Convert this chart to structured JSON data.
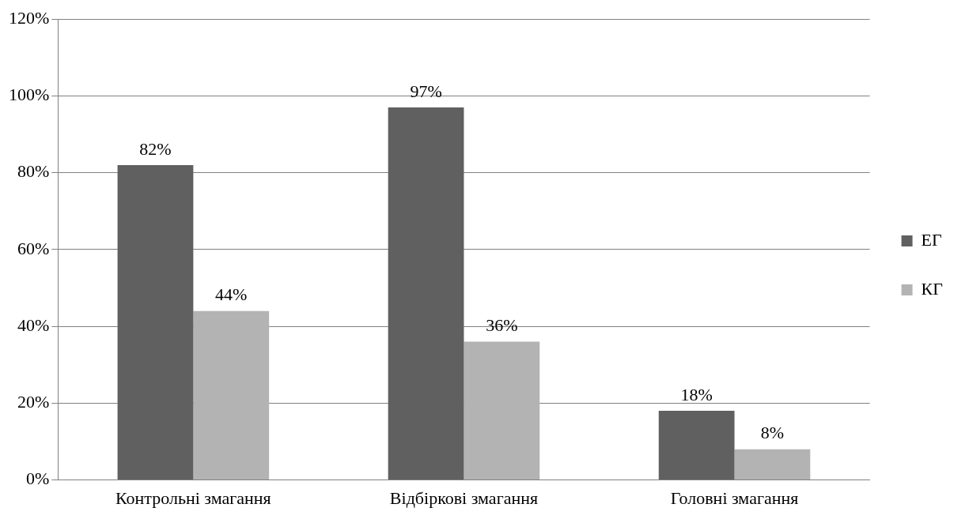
{
  "chart_data": {
    "type": "bar",
    "categories": [
      "Контрольні змагання",
      "Відбіркові змагання",
      "Головні змагання"
    ],
    "series": [
      {
        "name": "ЕГ",
        "color": "#606060",
        "values": [
          82,
          97,
          18
        ],
        "value_labels": [
          "82%",
          "97%",
          "18%"
        ]
      },
      {
        "name": "КГ",
        "color": "#b3b3b3",
        "values": [
          44,
          36,
          8
        ],
        "value_labels": [
          "44%",
          "36%",
          "8%"
        ]
      }
    ],
    "ylim": [
      0,
      120
    ],
    "yticks": [
      {
        "value": 0,
        "label": "0%"
      },
      {
        "value": 20,
        "label": "20%"
      },
      {
        "value": 40,
        "label": "40%"
      },
      {
        "value": 60,
        "label": "60%"
      },
      {
        "value": 80,
        "label": "80%"
      },
      {
        "value": 100,
        "label": "100%"
      },
      {
        "value": 120,
        "label": "120%"
      }
    ],
    "grid": "y",
    "legend": "right"
  }
}
